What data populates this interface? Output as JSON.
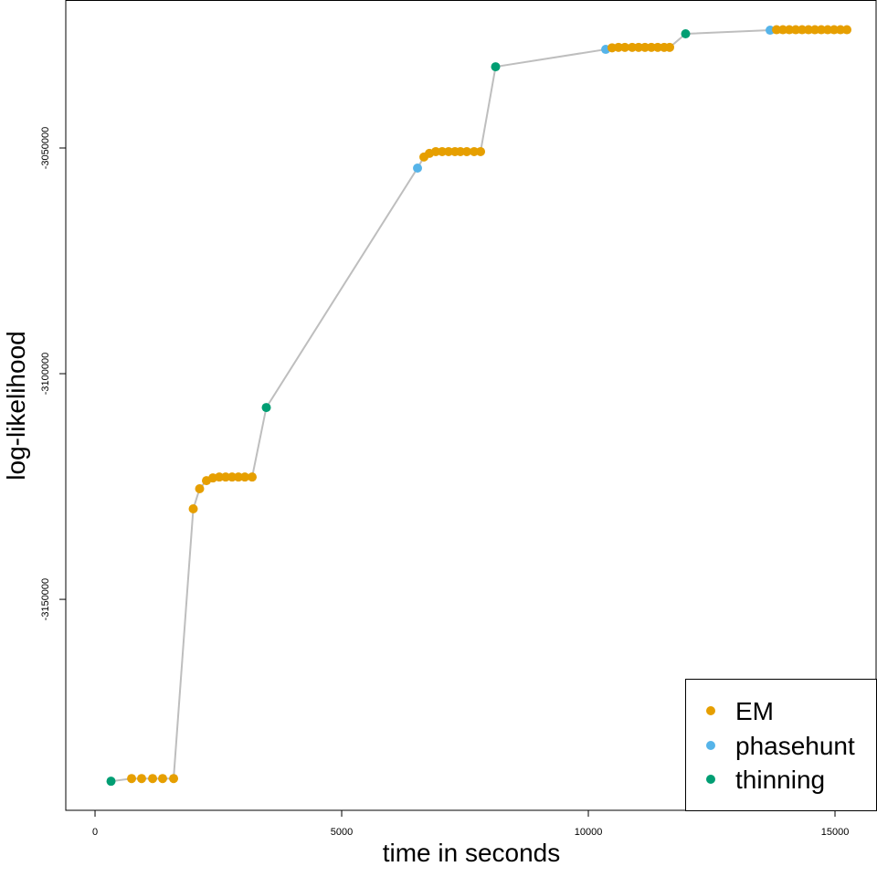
{
  "chart_data": {
    "type": "scatter",
    "title": "",
    "xlabel": "time in seconds",
    "ylabel": "log-likelihood",
    "xlim": [
      -593,
      15833
    ],
    "ylim": [
      -3196740,
      -3017210
    ],
    "xticks": [
      0,
      5000,
      10000,
      15000
    ],
    "xtick_labels": [
      "0",
      "5000",
      "10000",
      "15000"
    ],
    "yticks": [
      -3050000,
      -3100000,
      -3150000
    ],
    "ytick_labels": [
      "-3050000",
      "-3100000",
      "-3150000"
    ],
    "grid": false,
    "legend": {
      "placement": "bottom-right",
      "entries": [
        "EM",
        "phasehunt",
        "thinning"
      ]
    },
    "colors": {
      "EM": "#E69F00",
      "phasehunt": "#56B4E9",
      "thinning": "#009E73",
      "line": "#BEBEBE"
    },
    "points": [
      {
        "x": 324,
        "y": -3190300,
        "type": "thinning"
      },
      {
        "x": 741,
        "y": -3189700,
        "type": "EM"
      },
      {
        "x": 944,
        "y": -3189700,
        "type": "EM"
      },
      {
        "x": 1167,
        "y": -3189700,
        "type": "EM"
      },
      {
        "x": 1370,
        "y": -3189700,
        "type": "EM"
      },
      {
        "x": 1593,
        "y": -3189700,
        "type": "EM"
      },
      {
        "x": 1991,
        "y": -3129950,
        "type": "EM"
      },
      {
        "x": 2120,
        "y": -3125500,
        "type": "EM"
      },
      {
        "x": 2259,
        "y": -3123700,
        "type": "EM"
      },
      {
        "x": 2389,
        "y": -3123100,
        "type": "EM"
      },
      {
        "x": 2519,
        "y": -3122900,
        "type": "EM"
      },
      {
        "x": 2648,
        "y": -3122900,
        "type": "EM"
      },
      {
        "x": 2778,
        "y": -3122900,
        "type": "EM"
      },
      {
        "x": 2907,
        "y": -3122900,
        "type": "EM"
      },
      {
        "x": 3037,
        "y": -3122900,
        "type": "EM"
      },
      {
        "x": 3185,
        "y": -3122900,
        "type": "EM"
      },
      {
        "x": 3472,
        "y": -3107500,
        "type": "thinning"
      },
      {
        "x": 6537,
        "y": -3054450,
        "type": "phasehunt"
      },
      {
        "x": 6667,
        "y": -3052000,
        "type": "EM"
      },
      {
        "x": 6778,
        "y": -3051200,
        "type": "EM"
      },
      {
        "x": 6907,
        "y": -3050800,
        "type": "EM"
      },
      {
        "x": 7037,
        "y": -3050800,
        "type": "EM"
      },
      {
        "x": 7167,
        "y": -3050800,
        "type": "EM"
      },
      {
        "x": 7296,
        "y": -3050800,
        "type": "EM"
      },
      {
        "x": 7407,
        "y": -3050800,
        "type": "EM"
      },
      {
        "x": 7537,
        "y": -3050800,
        "type": "EM"
      },
      {
        "x": 7685,
        "y": -3050800,
        "type": "EM"
      },
      {
        "x": 7815,
        "y": -3050800,
        "type": "EM"
      },
      {
        "x": 8120,
        "y": -3032000,
        "type": "thinning"
      },
      {
        "x": 10352,
        "y": -3028150,
        "type": "phasehunt"
      },
      {
        "x": 10481,
        "y": -3027800,
        "type": "EM"
      },
      {
        "x": 10611,
        "y": -3027700,
        "type": "EM"
      },
      {
        "x": 10741,
        "y": -3027700,
        "type": "EM"
      },
      {
        "x": 10889,
        "y": -3027700,
        "type": "EM"
      },
      {
        "x": 11019,
        "y": -3027700,
        "type": "EM"
      },
      {
        "x": 11148,
        "y": -3027700,
        "type": "EM"
      },
      {
        "x": 11278,
        "y": -3027700,
        "type": "EM"
      },
      {
        "x": 11407,
        "y": -3027700,
        "type": "EM"
      },
      {
        "x": 11537,
        "y": -3027700,
        "type": "EM"
      },
      {
        "x": 11648,
        "y": -3027700,
        "type": "EM"
      },
      {
        "x": 11972,
        "y": -3024700,
        "type": "thinning"
      },
      {
        "x": 13685,
        "y": -3023900,
        "type": "phasehunt"
      },
      {
        "x": 13815,
        "y": -3023800,
        "type": "EM"
      },
      {
        "x": 13944,
        "y": -3023800,
        "type": "EM"
      },
      {
        "x": 14074,
        "y": -3023800,
        "type": "EM"
      },
      {
        "x": 14204,
        "y": -3023800,
        "type": "EM"
      },
      {
        "x": 14333,
        "y": -3023800,
        "type": "EM"
      },
      {
        "x": 14463,
        "y": -3023800,
        "type": "EM"
      },
      {
        "x": 14593,
        "y": -3023800,
        "type": "EM"
      },
      {
        "x": 14722,
        "y": -3023800,
        "type": "EM"
      },
      {
        "x": 14852,
        "y": -3023800,
        "type": "EM"
      },
      {
        "x": 14981,
        "y": -3023800,
        "type": "EM"
      },
      {
        "x": 15111,
        "y": -3023800,
        "type": "EM"
      },
      {
        "x": 15241,
        "y": -3023800,
        "type": "EM"
      }
    ]
  }
}
